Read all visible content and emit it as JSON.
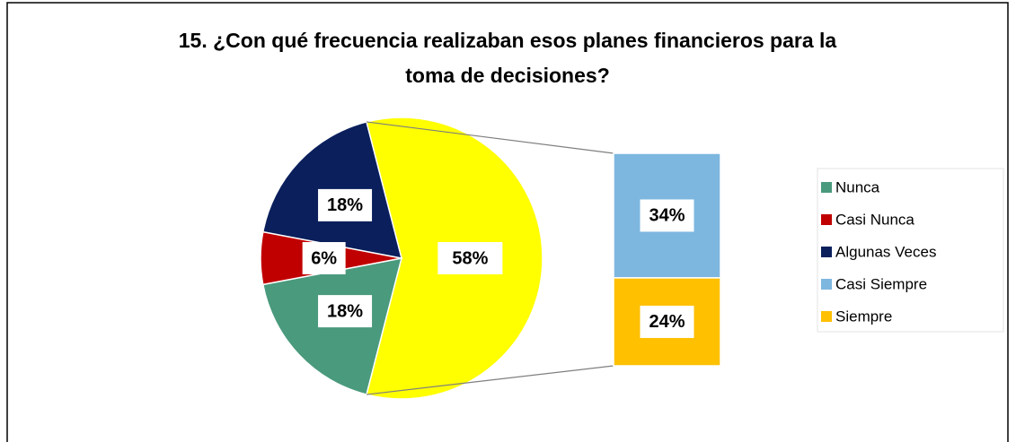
{
  "chart_data": {
    "type": "pie_of_bar",
    "title": [
      "15. ¿Con qué frecuencia realizaban esos planes financieros para la",
      "toma de decisiones?"
    ],
    "categories": [
      "Nunca",
      "Casi Nunca",
      "Algunas Veces",
      "Casi Siempre",
      "Siempre"
    ],
    "values": [
      18,
      6,
      18,
      34,
      24
    ],
    "value_labels": [
      "18%",
      "6%",
      "18%",
      "34%",
      "24%"
    ],
    "colors": [
      "#4a9a7d",
      "#c00000",
      "#0a1f5c",
      "#7db7e0",
      "#ffc000"
    ],
    "secondary_count": 2,
    "combined": {
      "value": 58,
      "value_label": "58%",
      "color": "#ffff00"
    },
    "legend": "right"
  }
}
